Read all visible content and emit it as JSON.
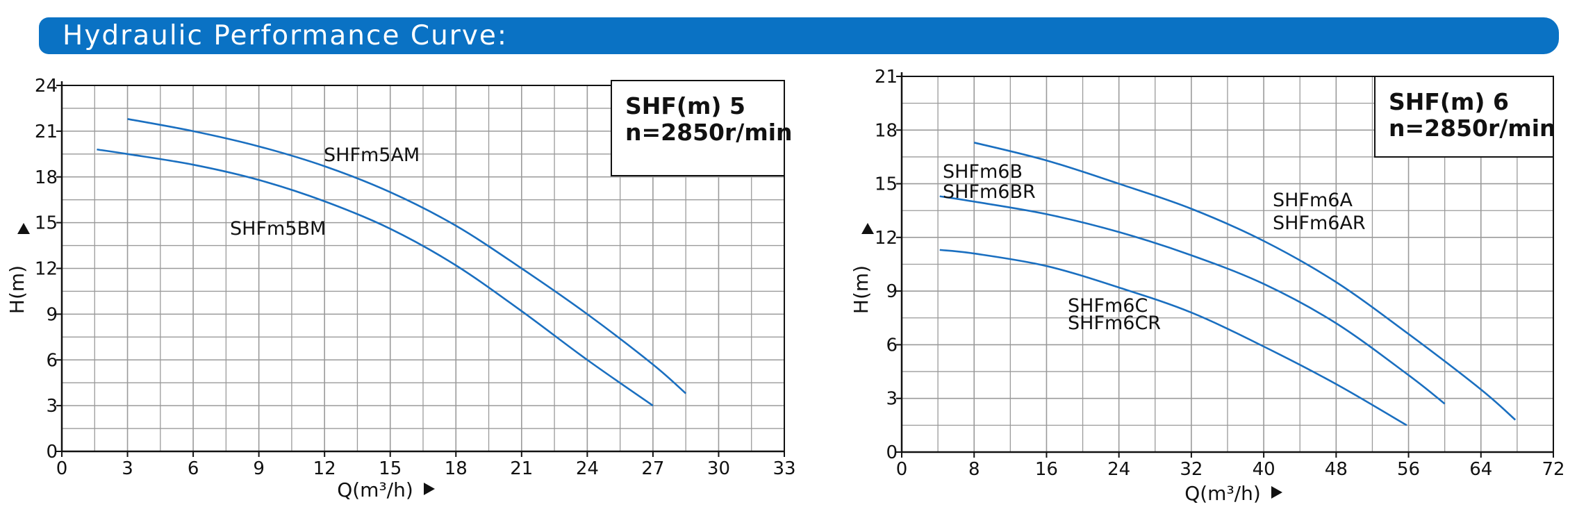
{
  "header": {
    "title": "Hydraulic  Performance  Curve:"
  },
  "colors": {
    "banner": "#0a72c4",
    "curve": "#1a6fc0",
    "grid": "#9a9a9a"
  },
  "chart_data": [
    {
      "type": "line",
      "xlabel": "Q(m³/h)",
      "ylabel": "H(m)",
      "xlim": [
        0,
        33
      ],
      "ylim": [
        0,
        24
      ],
      "xticks": [
        0,
        3,
        6,
        9,
        12,
        15,
        18,
        21,
        24,
        27,
        30,
        33
      ],
      "yticks": [
        0,
        3,
        6,
        9,
        12,
        15,
        18,
        21,
        24
      ],
      "grid": true,
      "info_box": {
        "lines": [
          "SHF(m) 5",
          "n=2850r/min"
        ],
        "placement": "top-right"
      },
      "series": [
        {
          "name": "SHFm5AM",
          "labels": [
            "SHFm5AM"
          ],
          "x": [
            3,
            6,
            9,
            12,
            15,
            18,
            21,
            24,
            27,
            28.5
          ],
          "y": [
            21.8,
            21.0,
            20.0,
            18.7,
            17.0,
            14.8,
            12.0,
            9.0,
            5.7,
            3.8
          ]
        },
        {
          "name": "SHFm5BM",
          "labels": [
            "SHFm5BM"
          ],
          "x": [
            1.6,
            3,
            6,
            9,
            12,
            15,
            18,
            21,
            24,
            27
          ],
          "y": [
            19.8,
            19.5,
            18.8,
            17.8,
            16.4,
            14.6,
            12.2,
            9.2,
            6.0,
            3.0
          ]
        }
      ]
    },
    {
      "type": "line",
      "xlabel": "Q(m³/h)",
      "ylabel": "H(m)",
      "xlim": [
        0,
        72
      ],
      "ylim": [
        0,
        21
      ],
      "xticks": [
        0,
        8,
        16,
        24,
        32,
        40,
        48,
        56,
        64,
        72
      ],
      "yticks": [
        0,
        3,
        6,
        9,
        12,
        15,
        18,
        21
      ],
      "grid": true,
      "info_box": {
        "lines": [
          "SHF(m) 6",
          "n=2850r/min"
        ],
        "placement": "top-right"
      },
      "series": [
        {
          "name": "SHFm6A / SHFm6AR",
          "labels": [
            "SHFm6A",
            "SHFm6AR"
          ],
          "x": [
            8,
            16,
            24,
            32,
            40,
            48,
            56,
            64,
            67.8
          ],
          "y": [
            17.3,
            16.3,
            15.0,
            13.6,
            11.8,
            9.5,
            6.6,
            3.5,
            1.8
          ]
        },
        {
          "name": "SHFm6B / SHFm6BR",
          "labels": [
            "SHFm6B",
            "SHFm6BR"
          ],
          "x": [
            4.2,
            8,
            16,
            24,
            32,
            40,
            48,
            56,
            60
          ],
          "y": [
            14.3,
            14.0,
            13.3,
            12.3,
            11.0,
            9.4,
            7.2,
            4.3,
            2.7
          ]
        },
        {
          "name": "SHFm6C / SHFm6CR",
          "labels": [
            "SHFm6C",
            "SHFm6CR"
          ],
          "x": [
            4.2,
            8,
            16,
            24,
            32,
            40,
            48,
            55.8
          ],
          "y": [
            11.3,
            11.1,
            10.4,
            9.2,
            7.8,
            5.9,
            3.8,
            1.5
          ]
        }
      ]
    }
  ]
}
